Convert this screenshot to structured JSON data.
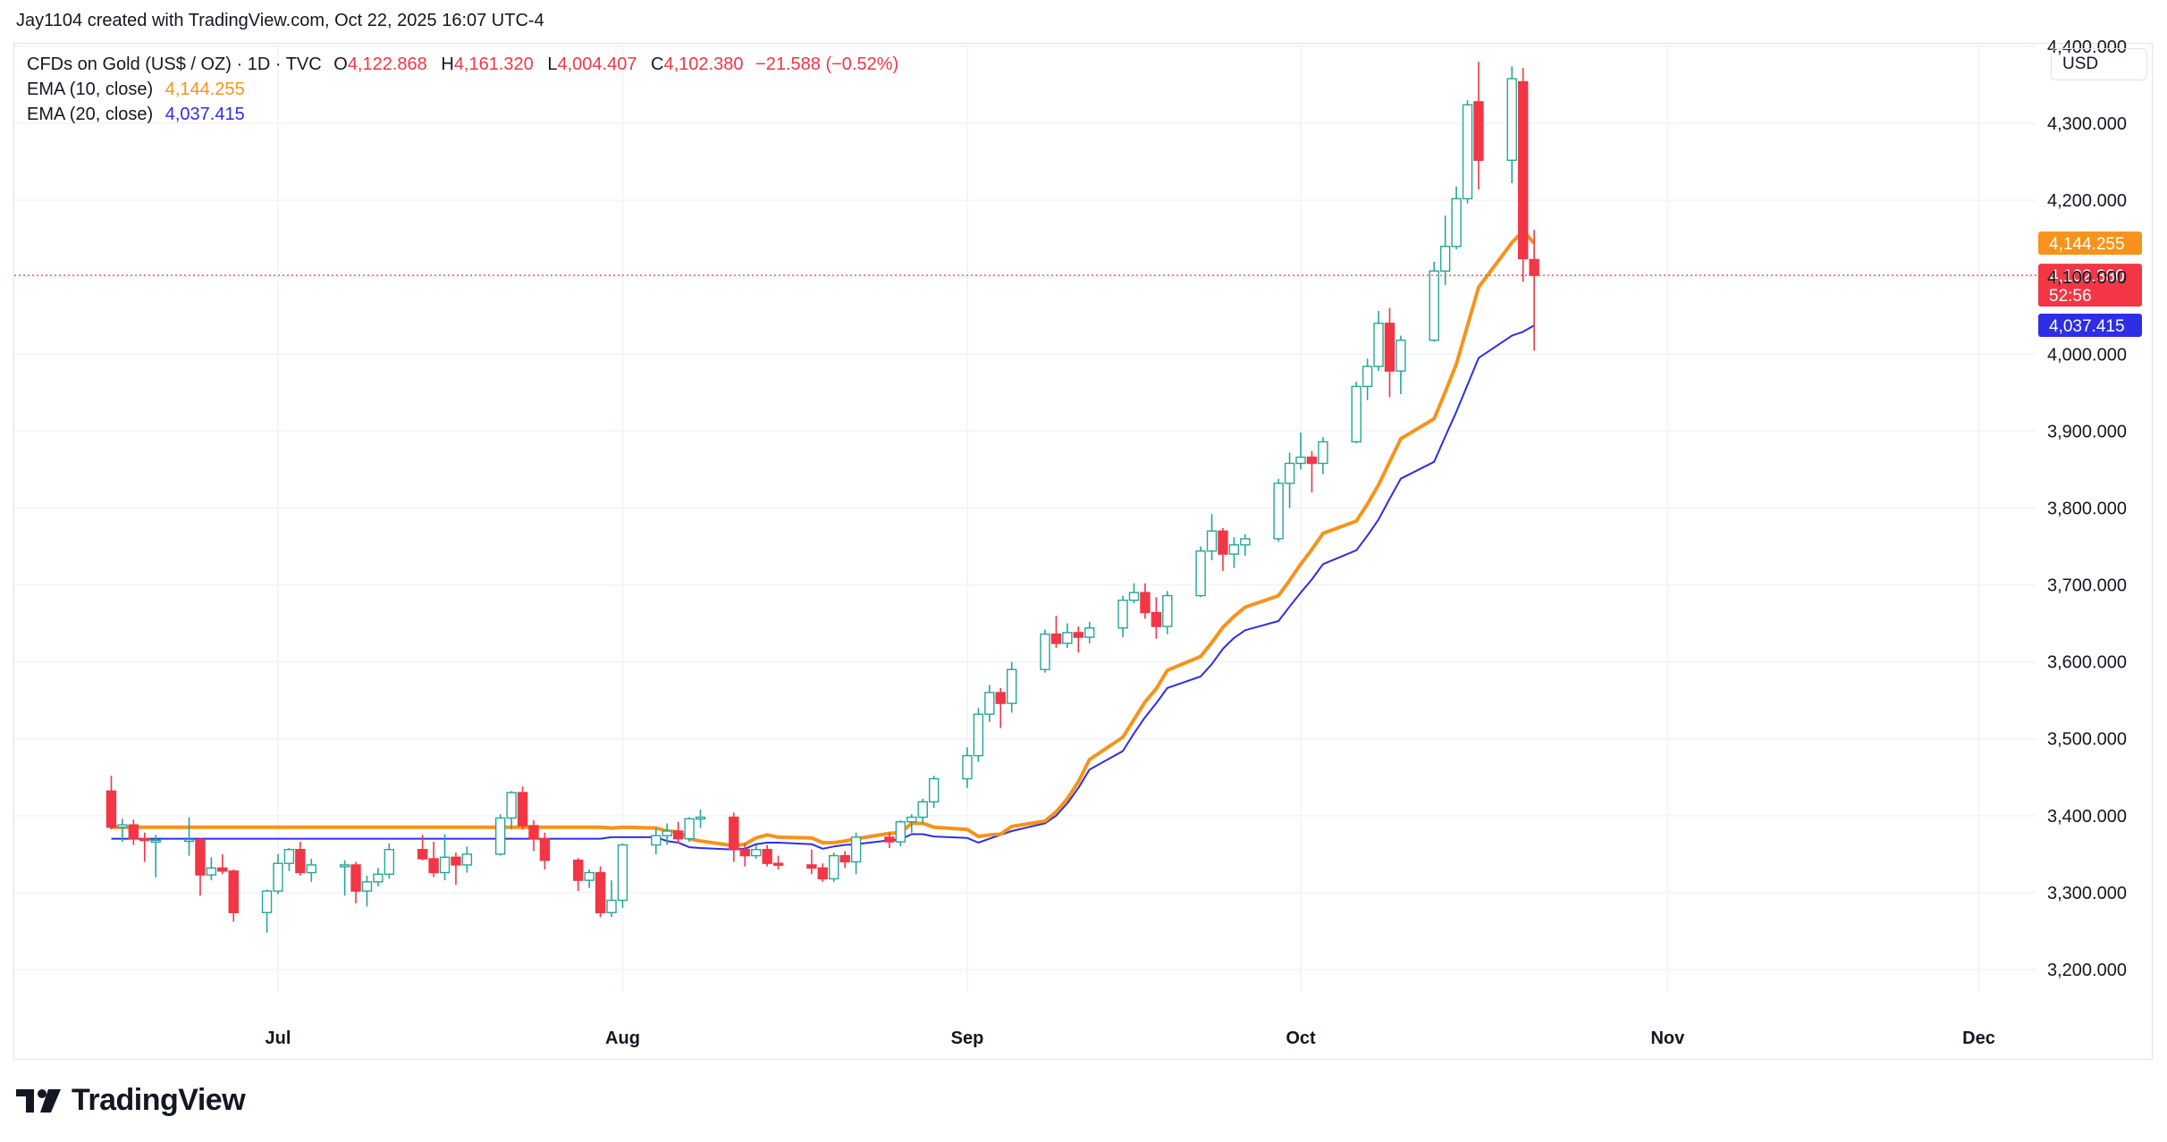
{
  "header": {
    "byline": "Jay1104 created with TradingView.com, Oct 22, 2025 16:07 UTC-4"
  },
  "legend": {
    "instrument": "CFDs on Gold (US$ / OZ) · 1D · TVC",
    "open_label": "O",
    "open": "4,122.868",
    "high_label": "H",
    "high": "4,161.320",
    "low_label": "L",
    "low": "4,004.407",
    "close_label": "C",
    "close": "4,102.380",
    "change": "−21.588 (−0.52%)",
    "ema10_label": "EMA (10, close)",
    "ema10_value": "4,144.255",
    "ema20_label": "EMA (20, close)",
    "ema20_value": "4,037.415"
  },
  "currency_button": "USD",
  "footer": {
    "logo_text": "TradingView"
  },
  "chart_data": {
    "type": "candlestick",
    "title": "CFDs on Gold (US$ / OZ) · 1D · TVC",
    "ylim": [
      3150,
      4450
    ],
    "y_ticks": [
      "3,200.000",
      "3,300.000",
      "3,400.000",
      "3,500.000",
      "3,600.000",
      "3,700.000",
      "3,800.000",
      "3,900.000",
      "4,000.000",
      "4,100.000",
      "4,200.000",
      "4,300.000",
      "4,400.000"
    ],
    "y_tick_values": [
      3200,
      3300,
      3400,
      3500,
      3600,
      3700,
      3800,
      3900,
      4000,
      4100,
      4200,
      4300,
      4400
    ],
    "x_ticks": [
      "Jul",
      "Aug",
      "Sep",
      "Oct",
      "Nov",
      "Dec"
    ],
    "x_tick_dates": [
      "2025-07-01",
      "2025-08-01",
      "2025-09-01",
      "2025-10-01",
      "2025-11-03",
      "2025-12-01"
    ],
    "colors": {
      "up": "#26a69a",
      "up_fill": "#ffffff",
      "down": "#f23645",
      "ema10": "#f7931a",
      "ema20": "#2e2ee6",
      "grid": "#f0f3fa"
    },
    "candles": [
      [
        "2025-06-16",
        3432,
        3452,
        3382,
        3385
      ],
      [
        "2025-06-17",
        3385,
        3396,
        3366,
        3388
      ],
      [
        "2025-06-18",
        3388,
        3395,
        3362,
        3370
      ],
      [
        "2025-06-19",
        3370,
        3378,
        3340,
        3368
      ],
      [
        "2025-06-20",
        3368,
        3375,
        3320,
        3368
      ],
      [
        "2025-06-23",
        3368,
        3398,
        3348,
        3369
      ],
      [
        "2025-06-24",
        3369,
        3371,
        3296,
        3323
      ],
      [
        "2025-06-25",
        3323,
        3346,
        3316,
        3332
      ],
      [
        "2025-06-26",
        3332,
        3350,
        3324,
        3328
      ],
      [
        "2025-06-27",
        3328,
        3330,
        3262,
        3274
      ],
      [
        "2025-06-30",
        3274,
        3304,
        3248,
        3302
      ],
      [
        "2025-07-01",
        3302,
        3350,
        3298,
        3338
      ],
      [
        "2025-07-02",
        3338,
        3358,
        3328,
        3356
      ],
      [
        "2025-07-03",
        3356,
        3366,
        3322,
        3326
      ],
      [
        "2025-07-04",
        3326,
        3344,
        3314,
        3336
      ],
      [
        "2025-07-07",
        3336,
        3342,
        3296,
        3336
      ],
      [
        "2025-07-08",
        3336,
        3340,
        3286,
        3302
      ],
      [
        "2025-07-09",
        3302,
        3322,
        3282,
        3314
      ],
      [
        "2025-07-10",
        3314,
        3332,
        3308,
        3324
      ],
      [
        "2025-07-11",
        3324,
        3364,
        3318,
        3356
      ],
      [
        "2025-07-14",
        3356,
        3375,
        3342,
        3344
      ],
      [
        "2025-07-15",
        3344,
        3366,
        3320,
        3326
      ],
      [
        "2025-07-16",
        3326,
        3376,
        3316,
        3346
      ],
      [
        "2025-07-17",
        3346,
        3352,
        3310,
        3336
      ],
      [
        "2025-07-18",
        3336,
        3360,
        3326,
        3350
      ],
      [
        "2025-07-21",
        3350,
        3402,
        3348,
        3397
      ],
      [
        "2025-07-22",
        3397,
        3432,
        3382,
        3430
      ],
      [
        "2025-07-23",
        3430,
        3438,
        3382,
        3387
      ],
      [
        "2025-07-24",
        3387,
        3394,
        3354,
        3370
      ],
      [
        "2025-07-25",
        3370,
        3378,
        3330,
        3342
      ],
      [
        "2025-07-28",
        3342,
        3345,
        3302,
        3316
      ],
      [
        "2025-07-29",
        3316,
        3330,
        3306,
        3326
      ],
      [
        "2025-07-30",
        3326,
        3334,
        3268,
        3274
      ],
      [
        "2025-07-31",
        3274,
        3316,
        3268,
        3290
      ],
      [
        "2025-08-01",
        3290,
        3364,
        3280,
        3362
      ],
      [
        "2025-08-04",
        3362,
        3384,
        3350,
        3374
      ],
      [
        "2025-08-05",
        3374,
        3390,
        3362,
        3380
      ],
      [
        "2025-08-06",
        3380,
        3392,
        3364,
        3370
      ],
      [
        "2025-08-07",
        3370,
        3398,
        3366,
        3396
      ],
      [
        "2025-08-08",
        3396,
        3408,
        3384,
        3398
      ],
      [
        "2025-08-11",
        3398,
        3404,
        3340,
        3356
      ],
      [
        "2025-08-12",
        3356,
        3364,
        3334,
        3348
      ],
      [
        "2025-08-13",
        3348,
        3362,
        3344,
        3356
      ],
      [
        "2025-08-14",
        3356,
        3362,
        3334,
        3338
      ],
      [
        "2025-08-15",
        3338,
        3348,
        3330,
        3336
      ],
      [
        "2025-08-18",
        3336,
        3356,
        3324,
        3332
      ],
      [
        "2025-08-19",
        3332,
        3338,
        3314,
        3318
      ],
      [
        "2025-08-20",
        3318,
        3352,
        3314,
        3348
      ],
      [
        "2025-08-21",
        3348,
        3354,
        3332,
        3340
      ],
      [
        "2025-08-22",
        3340,
        3378,
        3324,
        3372
      ],
      [
        "2025-08-25",
        3372,
        3378,
        3358,
        3366
      ],
      [
        "2025-08-26",
        3366,
        3394,
        3360,
        3392
      ],
      [
        "2025-08-27",
        3392,
        3402,
        3378,
        3398
      ],
      [
        "2025-08-28",
        3398,
        3422,
        3390,
        3418
      ],
      [
        "2025-08-29",
        3418,
        3452,
        3410,
        3448
      ],
      [
        "2025-09-01",
        3448,
        3489,
        3436,
        3478
      ],
      [
        "2025-09-02",
        3478,
        3540,
        3470,
        3532
      ],
      [
        "2025-09-03",
        3532,
        3570,
        3522,
        3560
      ],
      [
        "2025-09-04",
        3560,
        3566,
        3514,
        3546
      ],
      [
        "2025-09-05",
        3546,
        3600,
        3534,
        3590
      ],
      [
        "2025-09-08",
        3590,
        3642,
        3586,
        3636
      ],
      [
        "2025-09-09",
        3636,
        3660,
        3618,
        3624
      ],
      [
        "2025-09-10",
        3624,
        3650,
        3618,
        3638
      ],
      [
        "2025-09-11",
        3638,
        3646,
        3612,
        3632
      ],
      [
        "2025-09-12",
        3632,
        3652,
        3624,
        3644
      ],
      [
        "2025-09-15",
        3644,
        3686,
        3632,
        3680
      ],
      [
        "2025-09-16",
        3680,
        3702,
        3676,
        3690
      ],
      [
        "2025-09-17",
        3690,
        3702,
        3656,
        3664
      ],
      [
        "2025-09-18",
        3664,
        3684,
        3630,
        3646
      ],
      [
        "2025-09-19",
        3646,
        3692,
        3636,
        3686
      ],
      [
        "2025-09-22",
        3686,
        3750,
        3684,
        3744
      ],
      [
        "2025-09-23",
        3744,
        3792,
        3732,
        3770
      ],
      [
        "2025-09-24",
        3770,
        3774,
        3718,
        3740
      ],
      [
        "2025-09-25",
        3740,
        3762,
        3722,
        3752
      ],
      [
        "2025-09-26",
        3752,
        3766,
        3738,
        3760
      ],
      [
        "2025-09-29",
        3760,
        3838,
        3756,
        3832
      ],
      [
        "2025-09-30",
        3832,
        3872,
        3800,
        3858
      ],
      [
        "2025-10-01",
        3858,
        3898,
        3850,
        3866
      ],
      [
        "2025-10-02",
        3866,
        3874,
        3820,
        3858
      ],
      [
        "2025-10-03",
        3858,
        3892,
        3844,
        3886
      ],
      [
        "2025-10-06",
        3886,
        3964,
        3884,
        3958
      ],
      [
        "2025-10-07",
        3958,
        3994,
        3940,
        3984
      ],
      [
        "2025-10-08",
        3984,
        4056,
        3978,
        4040
      ],
      [
        "2025-10-09",
        4040,
        4060,
        3944,
        3978
      ],
      [
        "2025-10-10",
        3978,
        4024,
        3948,
        4018
      ],
      [
        "2025-10-13",
        4018,
        4120,
        4016,
        4108
      ],
      [
        "2025-10-14",
        4108,
        4180,
        4090,
        4140
      ],
      [
        "2025-10-15",
        4140,
        4218,
        4136,
        4202
      ],
      [
        "2025-10-16",
        4202,
        4330,
        4196,
        4324
      ],
      [
        "2025-10-17",
        4328,
        4380,
        4214,
        4252
      ],
      [
        "2025-10-20",
        4252,
        4374,
        4222,
        4358
      ],
      [
        "2025-10-21",
        4354,
        4372,
        4094,
        4124
      ],
      [
        "2025-10-22",
        4122.868,
        4161.32,
        4004.407,
        4102.38
      ]
    ],
    "series": [
      {
        "name": "EMA (10, close)",
        "last": 4144.255,
        "values": [
          3385,
          3384,
          3385,
          3384,
          3380,
          3379,
          3370,
          3367,
          3361,
          3363,
          3371,
          3375,
          3372,
          3371,
          3365,
          3365,
          3367,
          3370,
          3377,
          3378,
          3390,
          3390,
          3385,
          3382,
          3373,
          3375,
          3376,
          3386,
          3393,
          3405,
          3422,
          3444,
          3473,
          3502,
          3525,
          3548,
          3565,
          3589,
          3607,
          3625,
          3645,
          3659,
          3671,
          3686,
          3706,
          3727,
          3746,
          3767,
          3783,
          3805,
          3830,
          3860,
          3890,
          3916,
          3951,
          3987,
          4037,
          4087,
          4145,
          4160,
          4144.255
        ]
      },
      {
        "name": "EMA (20, close)",
        "last": 4037.415,
        "values": [
          3370,
          3372,
          3372,
          3372,
          3367,
          3365,
          3359,
          3358,
          3356,
          3357,
          3363,
          3365,
          3365,
          3363,
          3357,
          3360,
          3362,
          3363,
          3368,
          3369,
          3376,
          3376,
          3373,
          3371,
          3365,
          3370,
          3375,
          3380,
          3390,
          3400,
          3416,
          3436,
          3460,
          3484,
          3507,
          3528,
          3546,
          3566,
          3581,
          3597,
          3617,
          3631,
          3641,
          3653,
          3672,
          3690,
          3707,
          3727,
          3745,
          3764,
          3785,
          3812,
          3838,
          3860,
          3893,
          3925,
          3960,
          3995,
          4024,
          4029,
          4037.415
        ]
      }
    ],
    "last_price_label": "4,102.380",
    "countdown_label": "52:56"
  }
}
